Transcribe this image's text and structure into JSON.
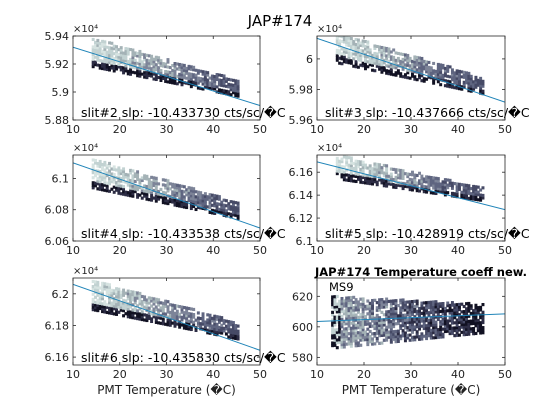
{
  "figure_title": "JAP#174",
  "colors": {
    "fit_line": "#1f84b8",
    "cells": [
      "#111122",
      "#2c2c44",
      "#464a66",
      "#5f6580",
      "#7d8498",
      "#a4b2b6",
      "#c2d2d2",
      "#d6e3e1"
    ]
  },
  "chart_data": [
    {
      "type": "heatmap",
      "id": "p1",
      "multiplier_label": "×10⁴",
      "ylim": [
        58800,
        59400
      ],
      "yticks": [
        58800,
        59000,
        59200,
        59400
      ],
      "ytick_labels": [
        "5.88",
        "5.9",
        "5.92",
        "5.94"
      ],
      "xlim": [
        10,
        50
      ],
      "xticks": [
        10,
        20,
        30,
        40,
        50
      ],
      "xtick_labels": [
        "10",
        "20",
        "30",
        "40",
        "50"
      ],
      "xlabel": "",
      "annotation": "slit#2 slp: -10.433730 cts/sc/�C",
      "fit_line": {
        "x": [
          10,
          50
        ],
        "y": [
          59320,
          58903
        ]
      },
      "density_band": {
        "x_start": 14,
        "x_end": 45,
        "y_start": 59280,
        "y_end": 59020,
        "half_width": 110
      }
    },
    {
      "type": "heatmap",
      "id": "p2",
      "multiplier_label": "×10⁴",
      "ylim": [
        59600,
        60150
      ],
      "yticks": [
        59600,
        59800,
        60000
      ],
      "ytick_labels": [
        "5.96",
        "5.98",
        "6"
      ],
      "xlim": [
        10,
        50
      ],
      "xticks": [
        10,
        20,
        30,
        40,
        50
      ],
      "xtick_labels": [
        "10",
        "20",
        "30",
        "40",
        "50"
      ],
      "xlabel": "",
      "annotation": "slit#3 slp: -10.437666 cts/sc/�C",
      "fit_line": {
        "x": [
          10,
          50
        ],
        "y": [
          60135,
          59717
        ]
      },
      "density_band": {
        "x_start": 14,
        "x_end": 45,
        "y_start": 60070,
        "y_end": 59820,
        "half_width": 105
      }
    },
    {
      "type": "heatmap",
      "id": "p3",
      "multiplier_label": "×10⁴",
      "ylim": [
        60600,
        61150
      ],
      "yticks": [
        60600,
        60800,
        61000
      ],
      "ytick_labels": [
        "6.06",
        "6.08",
        "6.1"
      ],
      "xlim": [
        10,
        50
      ],
      "xticks": [
        10,
        20,
        30,
        40,
        50
      ],
      "xtick_labels": [
        "10",
        "20",
        "30",
        "40",
        "50"
      ],
      "xlabel": "",
      "annotation": "slit#4 slp: -10.433538 cts/sc/�C",
      "fit_line": {
        "x": [
          10,
          50
        ],
        "y": [
          61100,
          60683
        ]
      },
      "density_band": {
        "x_start": 14,
        "x_end": 45,
        "y_start": 61030,
        "y_end": 60790,
        "half_width": 100
      }
    },
    {
      "type": "heatmap",
      "id": "p4",
      "multiplier_label": "×10⁴",
      "ylim": [
        61000,
        61750
      ],
      "yticks": [
        61000,
        61200,
        61400,
        61600
      ],
      "ytick_labels": [
        "6.1",
        "6.12",
        "6.14",
        "6.16"
      ],
      "xlim": [
        10,
        50
      ],
      "xticks": [
        10,
        20,
        30,
        40,
        50
      ],
      "xtick_labels": [
        "10",
        "20",
        "30",
        "40",
        "50"
      ],
      "xlabel": "",
      "annotation": "slit#5 slp: -10.428919 cts/sc/�C",
      "fit_line": {
        "x": [
          10,
          50
        ],
        "y": [
          61690,
          61273
        ]
      },
      "density_band": {
        "x_start": 14,
        "x_end": 45,
        "y_start": 61640,
        "y_end": 61400,
        "half_width": 110
      }
    },
    {
      "type": "heatmap",
      "id": "p5",
      "multiplier_label": "×10⁴",
      "ylim": [
        61550,
        62100
      ],
      "yticks": [
        61600,
        61800,
        62000
      ],
      "ytick_labels": [
        "6.16",
        "6.18",
        "6.2"
      ],
      "xlim": [
        10,
        50
      ],
      "xticks": [
        10,
        20,
        30,
        40,
        50
      ],
      "xtick_labels": [
        "10",
        "20",
        "30",
        "40",
        "50"
      ],
      "xlabel": "PMT Temperature (�C)",
      "annotation": "slit#6 slp: -10.435830 cts/sc/�C",
      "fit_line": {
        "x": [
          10,
          50
        ],
        "y": [
          62060,
          61643
        ]
      },
      "density_band": {
        "x_start": 14,
        "x_end": 45,
        "y_start": 61990,
        "y_end": 61760,
        "half_width": 100
      }
    },
    {
      "type": "heatmap",
      "id": "p6",
      "title": "JAP#174 Temperature coeff new.",
      "label": "MS9",
      "ylim": [
        575,
        632
      ],
      "yticks": [
        580,
        600,
        620
      ],
      "ytick_labels": [
        "580",
        "600",
        "620"
      ],
      "xlim": [
        10,
        50
      ],
      "xticks": [
        10,
        20,
        30,
        40,
        50
      ],
      "xtick_labels": [
        "10",
        "20",
        "30",
        "40",
        "50"
      ],
      "xlabel": "PMT Temperature (�C)",
      "fit_line": {
        "x": [
          10,
          50
        ],
        "y": [
          603.5,
          608.5
        ]
      },
      "density_band": {
        "x_start": 13,
        "x_end": 45,
        "y_start": 603,
        "y_end": 605,
        "half_width": 18
      }
    }
  ]
}
